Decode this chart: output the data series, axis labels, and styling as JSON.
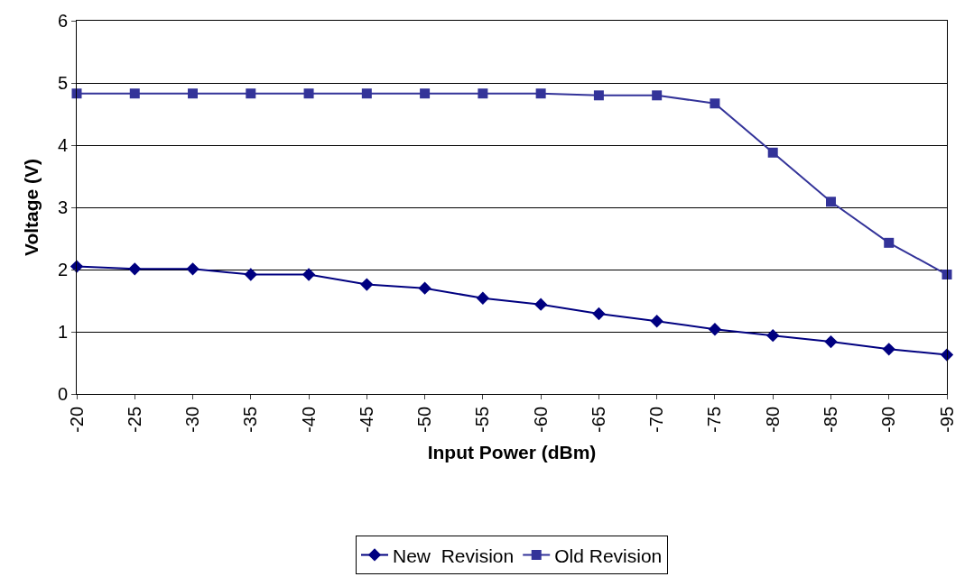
{
  "chart_data": {
    "type": "line",
    "xlabel": "Input Power (dBm)",
    "ylabel": "Voltage (V)",
    "categories": [
      "-20",
      "-25",
      "-30",
      "-35",
      "-40",
      "-45",
      "-50",
      "-55",
      "-60",
      "-65",
      "-70",
      "-75",
      "-80",
      "-85",
      "-90",
      "-95"
    ],
    "series": [
      {
        "name": "New  Revision",
        "color": "#000080",
        "marker": "diamond",
        "values": [
          2.05,
          2.01,
          2.01,
          1.92,
          1.92,
          1.76,
          1.7,
          1.54,
          1.44,
          1.29,
          1.17,
          1.04,
          0.94,
          0.84,
          0.72,
          0.63
        ]
      },
      {
        "name": "Old Revision",
        "color": "#333399",
        "marker": "square",
        "values": [
          4.83,
          4.83,
          4.83,
          4.83,
          4.83,
          4.83,
          4.83,
          4.83,
          4.83,
          4.8,
          4.8,
          4.67,
          3.88,
          3.09,
          2.43,
          1.92
        ]
      }
    ],
    "ylim": [
      0,
      6
    ],
    "yticks": [
      0,
      1,
      2,
      3,
      4,
      5,
      6
    ],
    "grid": "y",
    "legend": "bottom",
    "line_style": "solid"
  }
}
